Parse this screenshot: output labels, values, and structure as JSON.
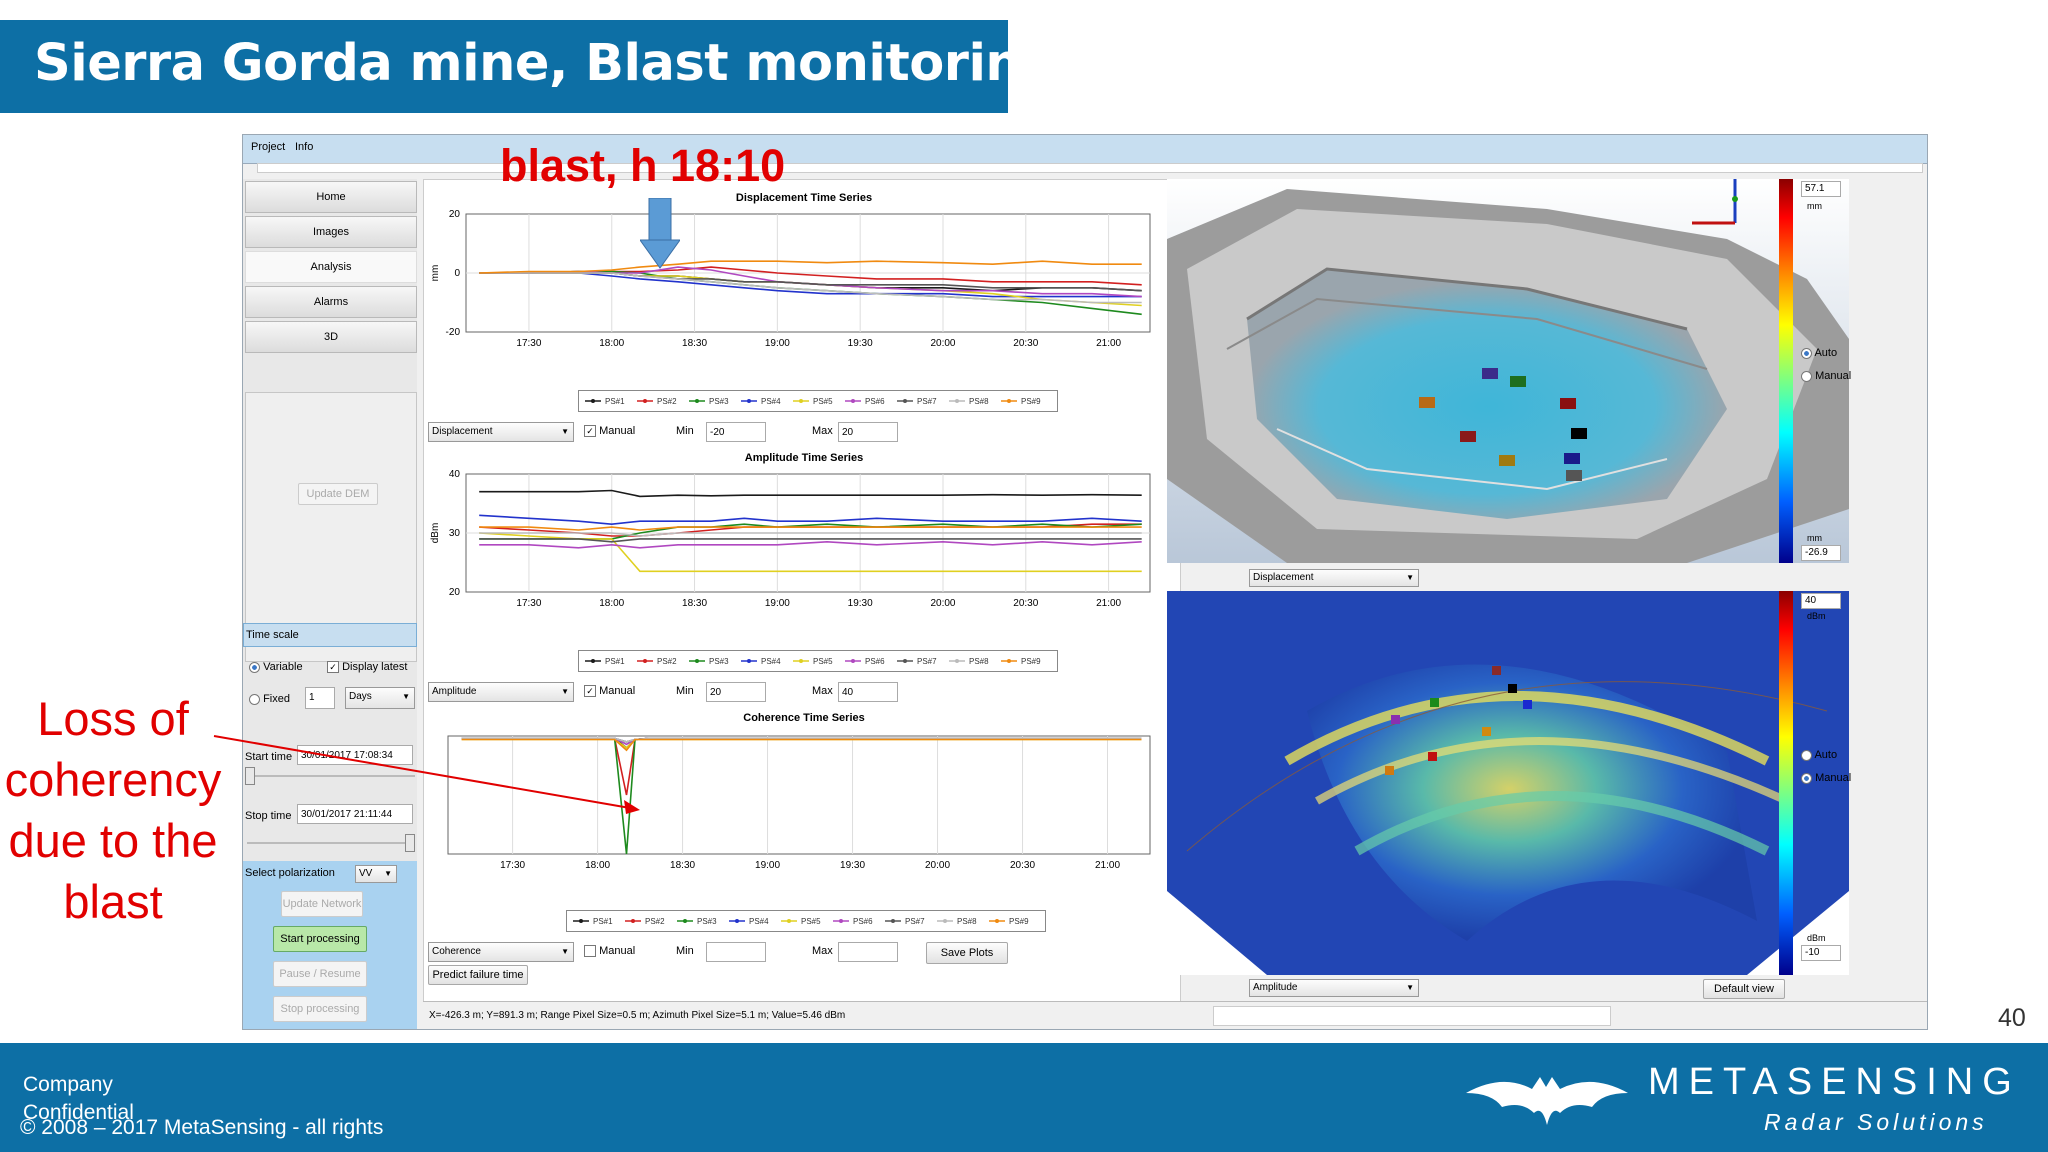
{
  "slide": {
    "title": "Sierra Gorda mine, Blast monitoring",
    "page_number": "40",
    "annotation_blast": "blast, h 18:10",
    "annotation_loss": "Loss of coherency due to the blast",
    "footer_left_1": "Company Confidential",
    "footer_left_2": "© 2008 – 2017 MetaSensing - all rights",
    "brand_name": "METASENSING",
    "brand_tagline": "Radar Solutions",
    "colors": {
      "title_bar": "#0d6fa5",
      "annotation": "#e10000"
    }
  },
  "app": {
    "menu": [
      "Project",
      "Info"
    ],
    "nav": {
      "home": "Home",
      "images": "Images",
      "analysis": "Analysis",
      "alarms": "Alarms",
      "3d": "3D",
      "update_dem": "Update DEM"
    },
    "time_scale": {
      "header": "Time scale",
      "variable": "Variable",
      "display_latest": "Display latest",
      "fixed": "Fixed",
      "fixed_value": "1",
      "fixed_unit": "Days",
      "start_label": "Start time",
      "start_value": "30/01/2017 17:08:34",
      "stop_label": "Stop time",
      "stop_value": "30/01/2017 21:11:44"
    },
    "polarization": {
      "label": "Select polarization",
      "value": "VV"
    },
    "processing": {
      "update_network": "Update Network",
      "start": "Start processing",
      "pause": "Pause / Resume",
      "stop": "Stop processing"
    },
    "status_text": "X=-426.3 m;  Y=891.3 m;  Range Pixel Size=0.5 m;  Azimuth Pixel Size=5.1 m;  Value=5.46 dBm",
    "controls": {
      "manual": "Manual",
      "min": "Min",
      "max": "Max",
      "disp_combo": "Displacement",
      "disp_min": "-20",
      "disp_max": "20",
      "amp_combo": "Amplitude",
      "amp_min": "20",
      "amp_max": "40",
      "coh_combo": "Coherence",
      "save_plots": "Save Plots",
      "predict": "Predict failure time"
    },
    "maps": {
      "top_combo": "Displacement",
      "bottom_combo": "Amplitude",
      "default_view": "Default view",
      "top_scale_max": "57.1",
      "top_scale_min": "-26.9",
      "top_unit": "mm",
      "bottom_scale_max": "40",
      "bottom_scale_min": "-10",
      "bottom_unit": "dBm",
      "auto": "Auto",
      "manual": "Manual"
    }
  },
  "chart_data": [
    {
      "type": "line",
      "title": "Displacement Time Series",
      "xlabel": "",
      "ylabel": "mm",
      "ylim": [
        -20,
        20
      ],
      "x_ticks": [
        "17:30",
        "18:00",
        "18:30",
        "19:00",
        "19:30",
        "20:00",
        "20:30",
        "21:00"
      ],
      "y_ticks": [
        "20",
        "0",
        "-20"
      ],
      "x": [
        17.2,
        17.5,
        17.8,
        18.0,
        18.17,
        18.4,
        18.6,
        18.8,
        19.0,
        19.3,
        19.6,
        20.0,
        20.3,
        20.6,
        20.9,
        21.2
      ],
      "series": [
        {
          "name": "PS#1",
          "color": "#1a1a1a",
          "values": [
            0,
            0,
            0.5,
            0,
            -1,
            -1,
            -2,
            -3,
            -3,
            -4,
            -5,
            -5,
            -6,
            -5,
            -5,
            -6
          ]
        },
        {
          "name": "PS#2",
          "color": "#d22020",
          "values": [
            0,
            0,
            0,
            0.5,
            0.5,
            1,
            2,
            1,
            0,
            -1,
            -2,
            -2,
            -3,
            -3,
            -3,
            -4
          ]
        },
        {
          "name": "PS#3",
          "color": "#1e8a1e",
          "values": [
            0,
            0,
            0.5,
            0.5,
            0,
            -2,
            -3,
            -4,
            -5,
            -6,
            -7,
            -8,
            -9,
            -10,
            -12,
            -14
          ]
        },
        {
          "name": "PS#4",
          "color": "#2233cc",
          "values": [
            0,
            0,
            0,
            -1,
            -2,
            -3,
            -4,
            -5,
            -6,
            -7,
            -7,
            -7,
            -8,
            -8,
            -8,
            -8
          ]
        },
        {
          "name": "PS#5",
          "color": "#e0d020",
          "values": [
            0,
            0,
            0,
            0,
            -1,
            -1,
            -2,
            -3,
            -3,
            -4,
            -5,
            -6,
            -7,
            -9,
            -10,
            -11
          ]
        },
        {
          "name": "PS#6",
          "color": "#b048c0",
          "values": [
            0,
            0,
            0.5,
            0,
            0,
            2,
            1,
            -1,
            -3,
            -4,
            -5,
            -6,
            -6,
            -7,
            -7,
            -8
          ]
        },
        {
          "name": "PS#7",
          "color": "#555555",
          "values": [
            0,
            0,
            0,
            0,
            -1,
            -2,
            -2,
            -3,
            -3,
            -4,
            -4,
            -4,
            -5,
            -5,
            -5,
            -6
          ]
        },
        {
          "name": "PS#8",
          "color": "#bbbbbb",
          "values": [
            0,
            0,
            0,
            0,
            -1,
            -2,
            -3,
            -4,
            -5,
            -6,
            -7,
            -8,
            -9,
            -9,
            -10,
            -10
          ]
        },
        {
          "name": "PS#9",
          "color": "#f08a10",
          "values": [
            0,
            0.5,
            0.5,
            1,
            2,
            3,
            4,
            4,
            4,
            3.5,
            4,
            3.5,
            3,
            4,
            3,
            3
          ]
        }
      ]
    },
    {
      "type": "line",
      "title": "Amplitude Time Series",
      "xlabel": "",
      "ylabel": "dBm",
      "ylim": [
        20,
        40
      ],
      "x_ticks": [
        "17:30",
        "18:00",
        "18:30",
        "19:00",
        "19:30",
        "20:00",
        "20:30",
        "21:00"
      ],
      "y_ticks": [
        "40",
        "30",
        "20"
      ],
      "x": [
        17.2,
        17.5,
        17.8,
        18.0,
        18.17,
        18.4,
        18.6,
        18.8,
        19.0,
        19.3,
        19.6,
        20.0,
        20.3,
        20.6,
        20.9,
        21.2
      ],
      "series": [
        {
          "name": "PS#1",
          "color": "#1a1a1a",
          "values": [
            37,
            37,
            37,
            37.2,
            36.2,
            36.4,
            36.3,
            36.4,
            36.4,
            36.4,
            36.4,
            36.4,
            36.5,
            36.4,
            36.5,
            36.4
          ]
        },
        {
          "name": "PS#2",
          "color": "#d22020",
          "values": [
            31,
            30.5,
            30,
            29.5,
            29.5,
            30,
            30.5,
            31,
            31,
            31,
            31,
            31,
            31,
            31,
            31.5,
            31.5
          ]
        },
        {
          "name": "PS#3",
          "color": "#1e8a1e",
          "values": [
            29,
            29,
            29,
            29,
            30,
            31,
            31,
            31.5,
            31,
            31.5,
            31,
            31.5,
            31,
            31.5,
            31,
            31.5
          ]
        },
        {
          "name": "PS#4",
          "color": "#2233cc",
          "values": [
            33,
            32.5,
            32,
            31.5,
            32,
            32,
            32,
            32.5,
            32,
            32,
            32.5,
            32,
            32,
            32,
            32.5,
            32
          ]
        },
        {
          "name": "PS#5",
          "color": "#e0d020",
          "values": [
            30,
            29.5,
            29,
            29,
            23.5,
            23.5,
            23.5,
            23.5,
            23.5,
            23.5,
            23.5,
            23.5,
            23.5,
            23.5,
            23.5,
            23.5
          ]
        },
        {
          "name": "PS#6",
          "color": "#b048c0",
          "values": [
            28,
            28,
            27.5,
            28,
            27.5,
            28,
            28,
            28,
            28,
            28.5,
            28,
            28.5,
            28,
            28.5,
            28,
            28.5
          ]
        },
        {
          "name": "PS#7",
          "color": "#555555",
          "values": [
            29,
            29,
            29,
            28.5,
            29,
            29,
            29,
            29,
            29,
            29,
            29,
            29,
            29,
            29,
            29,
            29
          ]
        },
        {
          "name": "PS#8",
          "color": "#bbbbbb",
          "values": [
            30,
            30,
            30,
            30,
            29.5,
            30,
            30,
            30,
            30,
            30,
            30,
            30,
            30,
            30,
            30,
            30
          ]
        },
        {
          "name": "PS#9",
          "color": "#f08a10",
          "values": [
            31,
            31,
            30.5,
            31,
            30.5,
            31,
            31,
            31,
            31,
            31,
            31,
            31,
            31,
            31,
            31,
            31
          ]
        }
      ]
    },
    {
      "type": "line",
      "title": "Coherence Time Series",
      "xlabel": "",
      "ylabel": "",
      "ylim": [
        0,
        1
      ],
      "x_ticks": [
        "17:30",
        "18:00",
        "18:30",
        "19:00",
        "19:30",
        "20:00",
        "20:30",
        "21:00"
      ],
      "y_ticks": [],
      "x": [
        17.2,
        17.5,
        17.8,
        18.0,
        18.1,
        18.17,
        18.22,
        18.3,
        18.6,
        19.0,
        19.4,
        19.8,
        20.2,
        20.6,
        21.0,
        21.2
      ],
      "series": [
        {
          "name": "PS#1",
          "color": "#1a1a1a",
          "values": [
            0.98,
            0.98,
            0.98,
            0.98,
            0.98,
            0.9,
            0.97,
            0.98,
            0.98,
            0.98,
            0.98,
            0.98,
            0.98,
            0.98,
            0.98,
            0.98
          ]
        },
        {
          "name": "PS#2",
          "color": "#d22020",
          "values": [
            0.98,
            0.98,
            0.98,
            0.98,
            0.98,
            0.5,
            0.97,
            0.98,
            0.98,
            0.98,
            0.98,
            0.98,
            0.98,
            0.98,
            0.98,
            0.98
          ]
        },
        {
          "name": "PS#3",
          "color": "#1e8a1e",
          "values": [
            0.98,
            0.98,
            0.98,
            0.98,
            0.98,
            0.0,
            0.97,
            0.98,
            0.98,
            0.98,
            0.98,
            0.98,
            0.98,
            0.98,
            0.98,
            0.98
          ]
        },
        {
          "name": "PS#4",
          "color": "#2233cc",
          "values": [
            0.98,
            0.98,
            0.98,
            0.98,
            0.98,
            0.95,
            0.97,
            0.98,
            0.98,
            0.98,
            0.98,
            0.98,
            0.98,
            0.98,
            0.98,
            0.98
          ]
        },
        {
          "name": "PS#5",
          "color": "#e0d020",
          "values": [
            0.97,
            0.97,
            0.97,
            0.97,
            0.97,
            0.9,
            0.97,
            0.97,
            0.97,
            0.97,
            0.97,
            0.97,
            0.97,
            0.97,
            0.97,
            0.97
          ]
        },
        {
          "name": "PS#6",
          "color": "#b048c0",
          "values": [
            0.98,
            0.98,
            0.98,
            0.98,
            0.98,
            0.93,
            0.97,
            0.98,
            0.98,
            0.98,
            0.98,
            0.98,
            0.98,
            0.98,
            0.98,
            0.98
          ]
        },
        {
          "name": "PS#7",
          "color": "#555555",
          "values": [
            0.98,
            0.98,
            0.98,
            0.98,
            0.98,
            0.95,
            0.97,
            0.98,
            0.98,
            0.98,
            0.98,
            0.98,
            0.98,
            0.98,
            0.98,
            0.98
          ]
        },
        {
          "name": "PS#8",
          "color": "#bbbbbb",
          "values": [
            0.98,
            0.98,
            0.98,
            0.98,
            0.98,
            0.95,
            0.97,
            0.98,
            0.98,
            0.98,
            0.98,
            0.98,
            0.98,
            0.98,
            0.98,
            0.98
          ]
        },
        {
          "name": "PS#9",
          "color": "#f08a10",
          "values": [
            0.97,
            0.97,
            0.97,
            0.97,
            0.97,
            0.88,
            0.97,
            0.97,
            0.97,
            0.97,
            0.97,
            0.97,
            0.97,
            0.97,
            0.97,
            0.97
          ]
        }
      ]
    }
  ]
}
